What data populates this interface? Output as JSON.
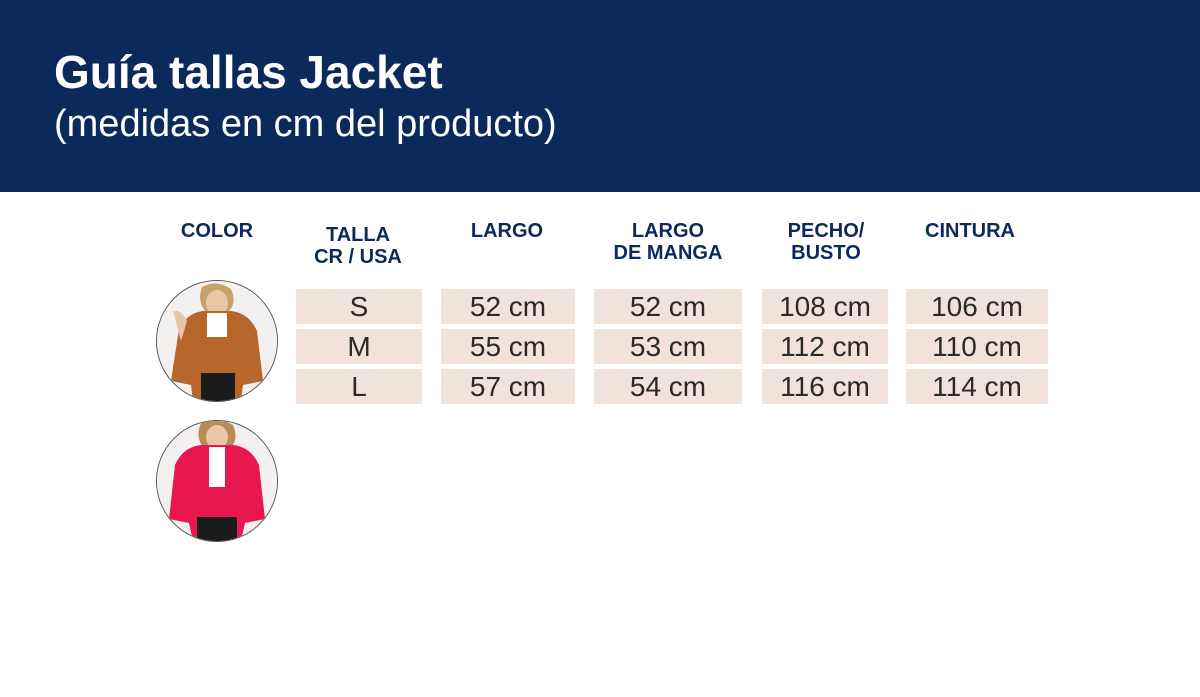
{
  "header": {
    "title": "Guía tallas Jacket",
    "subtitle": "(medidas en cm del producto)",
    "background_color": "#0b2a5b"
  },
  "table": {
    "columns": [
      {
        "key": "color",
        "lines": [
          "COLOR"
        ]
      },
      {
        "key": "talla",
        "lines": [
          "TALLA",
          "CR / USA"
        ]
      },
      {
        "key": "largo",
        "lines": [
          "LARGO"
        ]
      },
      {
        "key": "largo_manga",
        "lines": [
          "LARGO",
          "DE MANGA"
        ]
      },
      {
        "key": "pecho",
        "lines": [
          "PECHO/",
          "BUSTO"
        ]
      },
      {
        "key": "cintura",
        "lines": [
          "CINTURA"
        ]
      }
    ],
    "rows": [
      {
        "talla": "S",
        "largo": "52 cm",
        "largo_manga": "52 cm",
        "pecho": "108 cm",
        "cintura": "106 cm"
      },
      {
        "talla": "M",
        "largo": "55 cm",
        "largo_manga": "53 cm",
        "pecho": "112 cm",
        "cintura": "110 cm"
      },
      {
        "talla": "L",
        "largo": "57 cm",
        "largo_manga": "54 cm",
        "pecho": "116 cm",
        "cintura": "114 cm"
      }
    ],
    "cell_color": "#f1e3dc",
    "header_color": "#0b2a5b"
  },
  "colors": [
    {
      "name": "camel-jacket",
      "color": "#b8672c"
    },
    {
      "name": "pink-jacket",
      "color": "#e8174f"
    }
  ]
}
